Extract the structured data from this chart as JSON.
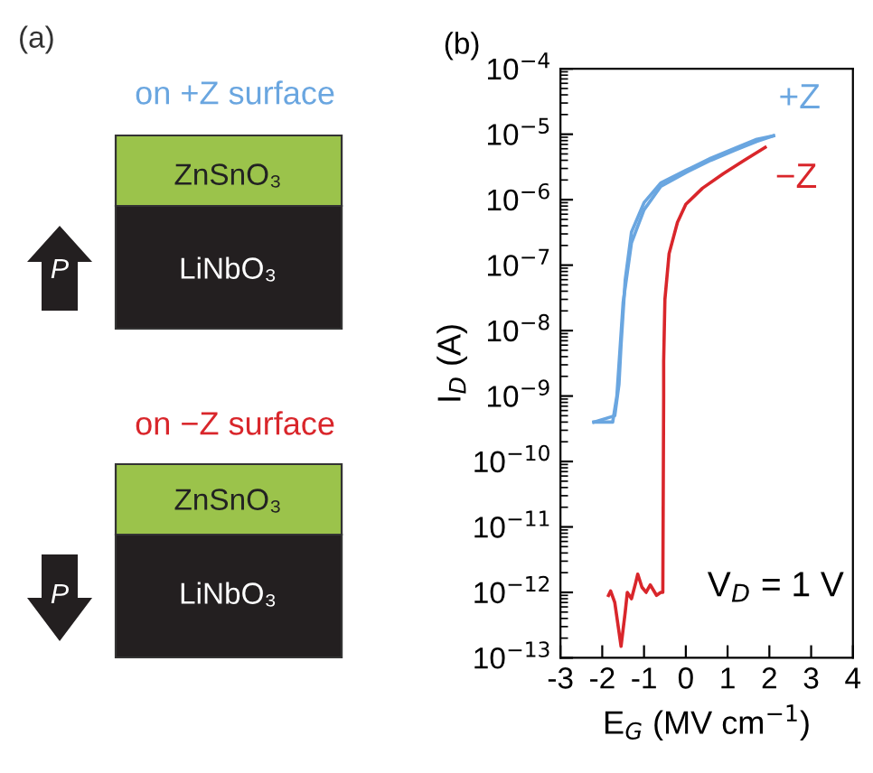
{
  "chart_data": [
    {
      "type": "other",
      "annotations": [
        "(a)",
        "on +Z surface",
        "ZnSnO₃",
        "LiNbO₃",
        "P",
        "on −Z surface",
        "ZnSnO₃",
        "LiNbO₃",
        "P"
      ]
    },
    {
      "type": "line",
      "title": "(b)",
      "xlabel": "E$_{G}$ (MV cm$^{−1}$)",
      "ylabel": "I$_{D}$ (A)",
      "log": "y",
      "legend": false,
      "grid": false,
      "xlim": [
        -3,
        4
      ],
      "xticks": [
        -3,
        -2,
        -1,
        0,
        1,
        2,
        3,
        4
      ],
      "ylim": [
        1e-13,
        0.0001
      ],
      "yticks": [
        {
          "value": 1e-13,
          "label": "10$^{−13}$"
        },
        {
          "value": 1e-12,
          "label": "10$^{−12}$"
        },
        {
          "value": 1e-11,
          "label": "10$^{−11}$"
        },
        {
          "value": 1e-10,
          "label": "10$^{−10}$"
        },
        {
          "value": 1e-09,
          "label": "10$^{−9}$"
        },
        {
          "value": 1e-08,
          "label": "10$^{−8}$"
        },
        {
          "value": 1e-07,
          "label": "10$^{−7}$"
        },
        {
          "value": 1e-06,
          "label": "10$^{−6}$"
        },
        {
          "value": 1e-05,
          "label": "10$^{−5}$"
        },
        {
          "value": 0.0001,
          "label": "10$^{−4}$"
        }
      ],
      "annotations": [
        "V$_{D}$ = 1 V"
      ],
      "series": [
        {
          "name": "+Z",
          "color": "#6aa6e0",
          "x": [
            -2.2,
            -1.75,
            -1.65,
            -1.6,
            -1.5,
            -1.3,
            -1.0,
            -0.6,
            0.0,
            0.6,
            1.2,
            1.7,
            2.1
          ],
          "values": [
            4e-10,
            4e-10,
            1e-09,
            3e-09,
            2.7e-08,
            2.2e-07,
            7e-07,
            1.6e-06,
            2.6e-06,
            4e-06,
            5.8e-06,
            7.8e-06,
            9.5e-06
          ]
        },
        {
          "color": "#6aa6e0",
          "x": [
            -2.2,
            -1.7,
            -1.6,
            -1.55,
            -1.45,
            -1.3,
            -1.0,
            -0.6,
            0.0,
            0.6,
            1.2,
            1.7,
            2.1
          ],
          "values": [
            4e-10,
            5e-10,
            1.5e-09,
            6e-09,
            6e-08,
            3.2e-07,
            9e-07,
            1.8e-06,
            2.8e-06,
            4.3e-06,
            6.2e-06,
            8.4e-06,
            9.5e-06
          ]
        },
        {
          "name": "−Z",
          "color": "#d9262b",
          "x": [
            -1.85,
            -1.8,
            -1.7,
            -1.6,
            -1.55,
            -1.45,
            -1.4,
            -1.3,
            -1.2,
            -1.15,
            -1.05,
            -0.95,
            -0.85,
            -0.7,
            -0.6,
            -0.55,
            -0.53,
            -0.53,
            -0.5,
            -0.4,
            -0.2,
            0.0,
            0.4,
            0.9,
            1.4,
            1.9
          ],
          "values": [
            9e-13,
            1.05e-12,
            7e-13,
            2.5e-13,
            1.5e-13,
            5e-13,
            1e-12,
            8e-13,
            1.4e-12,
            1.9e-12,
            1.2e-12,
            1e-12,
            1.3e-12,
            9e-13,
            1e-12,
            1e-12,
            1e-09,
            3.4e-09,
            3e-08,
            1.5e-07,
            4.5e-07,
            8.5e-07,
            1.5e-06,
            2.5e-06,
            4e-06,
            6.3e-06
          ]
        }
      ]
    }
  ]
}
